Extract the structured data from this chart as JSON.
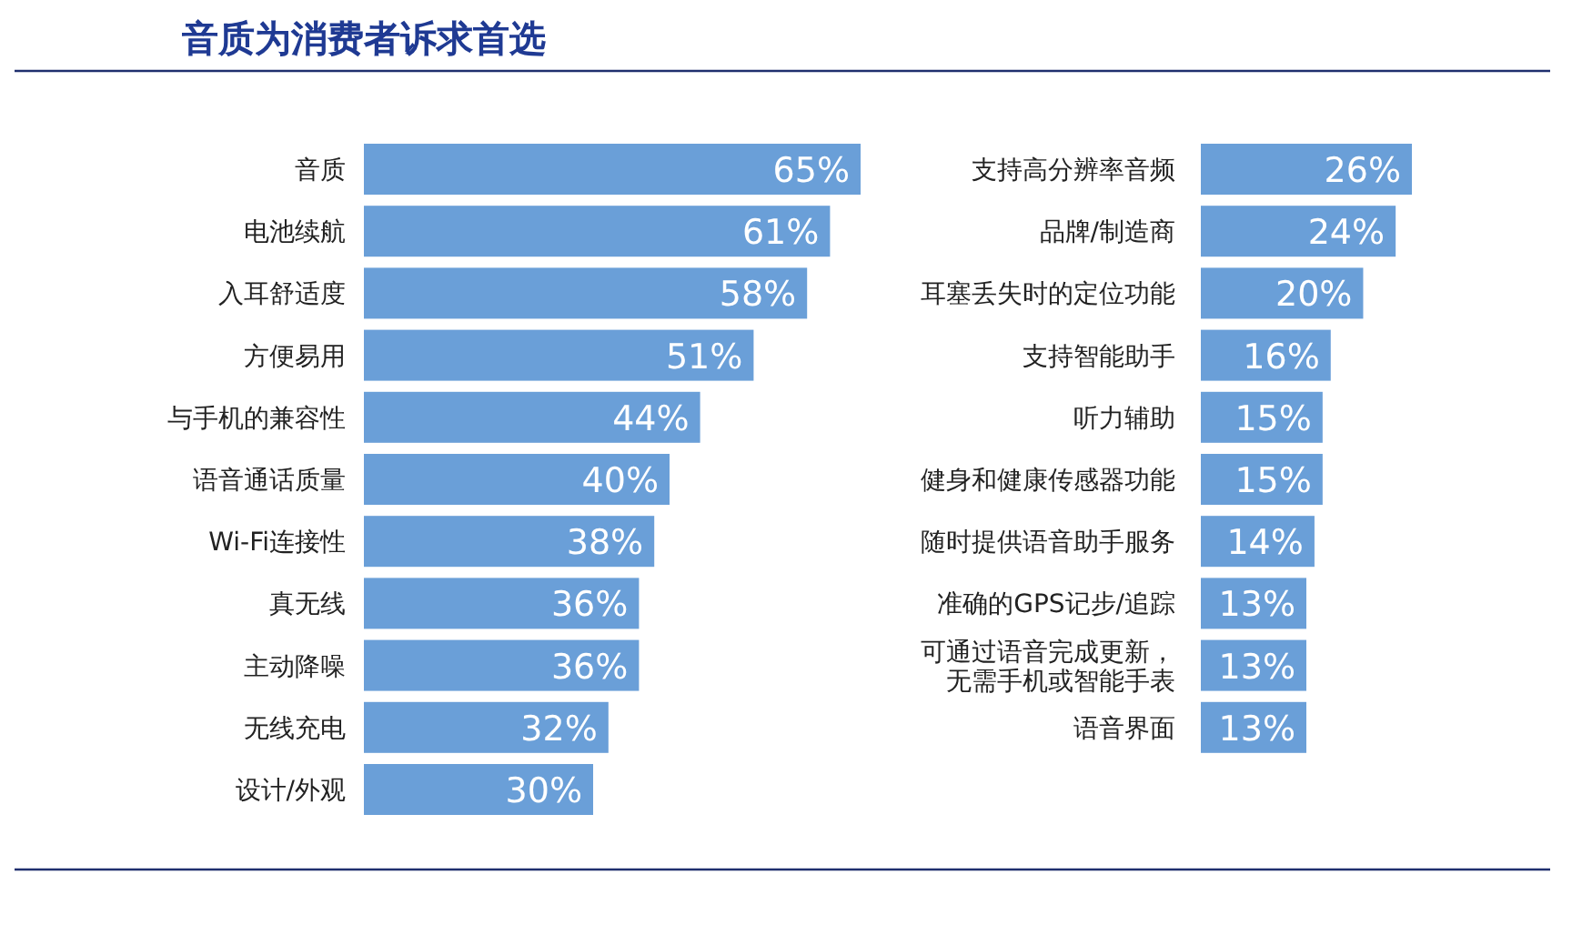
{
  "chart_data": [
    {
      "type": "bar",
      "orientation": "horizontal",
      "title": "音质为消费者诉求首选",
      "color": "#6a9fd8",
      "categories": [
        "音质",
        "电池续航",
        "入耳舒适度",
        "方便易用",
        "与手机的兼容性",
        "语音通话质量",
        "Wi-Fi连接性",
        "真无线",
        "主动降噪",
        "无线充电",
        "设计/外观"
      ],
      "values": [
        65,
        61,
        58,
        51,
        44,
        40,
        38,
        36,
        36,
        32,
        30
      ],
      "value_labels": [
        "65%",
        "61%",
        "58%",
        "51%",
        "44%",
        "40%",
        "38%",
        "36%",
        "36%",
        "32%",
        "30%"
      ]
    },
    {
      "type": "bar",
      "orientation": "horizontal",
      "color": "#6a9fd8",
      "categories": [
        "支持高分辨率音频",
        "品牌/制造商",
        "耳塞丢失时的定位功能",
        "支持智能助手",
        "听力辅助",
        "健身和健康传感器功能",
        "随时提供语音助手服务",
        "准确的GPS记步/追踪",
        "可通过语音完成更新，无需手机或智能手表",
        "语音界面"
      ],
      "values": [
        26,
        24,
        20,
        16,
        15,
        15,
        14,
        13,
        13,
        13
      ],
      "value_labels": [
        "26%",
        "24%",
        "20%",
        "16%",
        "15%",
        "15%",
        "14%",
        "13%",
        "13%",
        "13%"
      ]
    }
  ]
}
